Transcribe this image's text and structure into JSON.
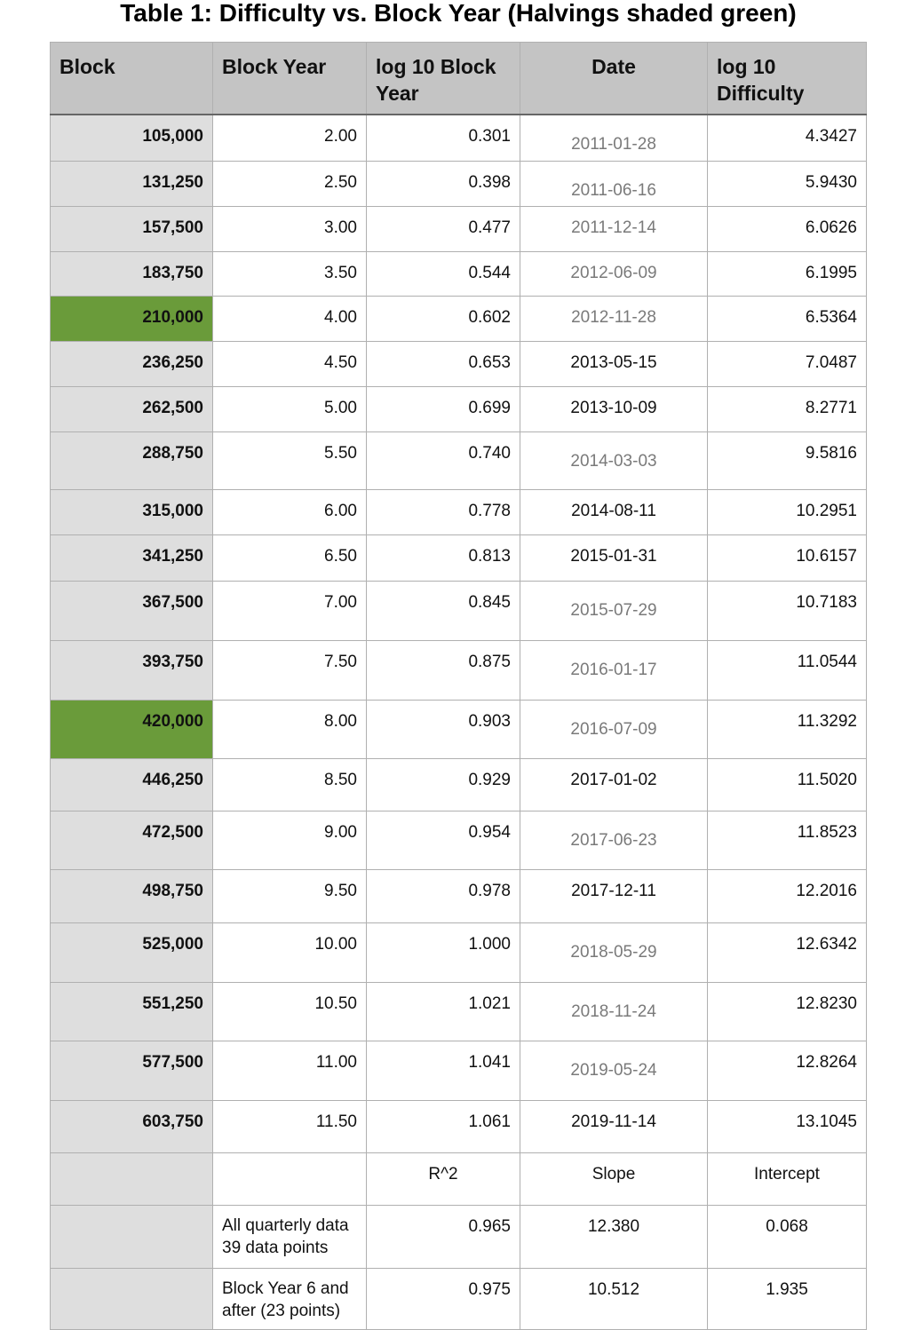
{
  "title": "Table 1: Difficulty vs. Block Year (Halvings shaded green)",
  "colors": {
    "halving": "#6a9b3a",
    "header": "#c4c4c4",
    "block_column": "#dedede"
  },
  "headers": [
    "Block",
    "Block Year",
    "log 10 Block Year",
    "Date",
    "log 10 Difficulty"
  ],
  "rows": [
    {
      "block": "105,000",
      "year": "2.00",
      "log_year": "0.301",
      "date": "2011-01-28",
      "log_diff": "4.3427",
      "halving": false
    },
    {
      "block": "131,250",
      "year": "2.50",
      "log_year": "0.398",
      "date": "2011-06-16",
      "log_diff": "5.9430",
      "halving": false
    },
    {
      "block": "157,500",
      "year": "3.00",
      "log_year": "0.477",
      "date": "2011-12-14",
      "log_diff": "6.0626",
      "halving": false
    },
    {
      "block": "183,750",
      "year": "3.50",
      "log_year": "0.544",
      "date": "2012-06-09",
      "log_diff": "6.1995",
      "halving": false
    },
    {
      "block": "210,000",
      "year": "4.00",
      "log_year": "0.602",
      "date": "2012-11-28",
      "log_diff": "6.5364",
      "halving": true
    },
    {
      "block": "236,250",
      "year": "4.50",
      "log_year": "0.653",
      "date": "2013-05-15",
      "log_diff": "7.0487",
      "halving": false
    },
    {
      "block": "262,500",
      "year": "5.00",
      "log_year": "0.699",
      "date": "2013-10-09",
      "log_diff": "8.2771",
      "halving": false
    },
    {
      "block": "288,750",
      "year": "5.50",
      "log_year": "0.740",
      "date": "2014-03-03",
      "log_diff": "9.5816",
      "halving": false
    },
    {
      "block": "315,000",
      "year": "6.00",
      "log_year": "0.778",
      "date": "2014-08-11",
      "log_diff": "10.2951",
      "halving": false
    },
    {
      "block": "341,250",
      "year": "6.50",
      "log_year": "0.813",
      "date": "2015-01-31",
      "log_diff": "10.6157",
      "halving": false
    },
    {
      "block": "367,500",
      "year": "7.00",
      "log_year": "0.845",
      "date": "2015-07-29",
      "log_diff": "10.7183",
      "halving": false
    },
    {
      "block": "393,750",
      "year": "7.50",
      "log_year": "0.875",
      "date": "2016-01-17",
      "log_diff": "11.0544",
      "halving": false
    },
    {
      "block": "420,000",
      "year": "8.00",
      "log_year": "0.903",
      "date": "2016-07-09",
      "log_diff": "11.3292",
      "halving": true
    },
    {
      "block": "446,250",
      "year": "8.50",
      "log_year": "0.929",
      "date": "2017-01-02",
      "log_diff": "11.5020",
      "halving": false
    },
    {
      "block": "472,500",
      "year": "9.00",
      "log_year": "0.954",
      "date": "2017-06-23",
      "log_diff": "11.8523",
      "halving": false
    },
    {
      "block": "498,750",
      "year": "9.50",
      "log_year": "0.978",
      "date": "2017-12-11",
      "log_diff": "12.2016",
      "halving": false
    },
    {
      "block": "525,000",
      "year": "10.00",
      "log_year": "1.000",
      "date": "2018-05-29",
      "log_diff": "12.6342",
      "halving": false
    },
    {
      "block": "551,250",
      "year": "10.50",
      "log_year": "1.021",
      "date": "2018-11-24",
      "log_diff": "12.8230",
      "halving": false
    },
    {
      "block": "577,500",
      "year": "11.00",
      "log_year": "1.041",
      "date": "2019-05-24",
      "log_diff": "12.8264",
      "halving": false
    },
    {
      "block": "603,750",
      "year": "11.50",
      "log_year": "1.061",
      "date": "2019-11-14",
      "log_diff": "13.1045",
      "halving": false
    }
  ],
  "regression": {
    "headers": [
      "R^2",
      "Slope",
      "Intercept"
    ],
    "rows": [
      {
        "label_line1": "All quarterly data",
        "label_line2": "39 data points",
        "r2": "0.965",
        "slope": "12.380",
        "intercept": "0.068"
      },
      {
        "label_line1": "Block Year 6 and",
        "label_line2": "after (23 points)",
        "r2": "0.975",
        "slope": "10.512",
        "intercept": "1.935"
      }
    ]
  }
}
